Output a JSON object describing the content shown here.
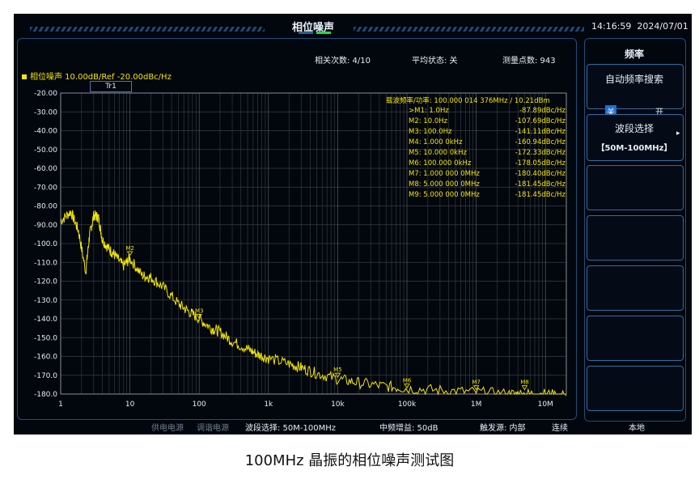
{
  "app": {
    "title": "相位噪声",
    "time": "14:16:59",
    "date": "2024/07/01"
  },
  "status": {
    "avg_count_label": "相关次数: 4/10",
    "avg_state_label": "平均状态: 关",
    "points_label": "测量点数: 943"
  },
  "trace": {
    "header": "相位噪声 10.00dB/Ref -20.00dBc/Hz",
    "tab": "Tr1",
    "color": "#f2e600"
  },
  "carrier_label": "载波频率/功率: 100.000 014 376MHz / 10.21dBm",
  "markers": [
    {
      "name": ">M1: 1.0Hz",
      "value": "-87.89dBc/Hz"
    },
    {
      "name": "M2: 10.0Hz",
      "value": "-107.69dBc/Hz"
    },
    {
      "name": "M3: 100.0Hz",
      "value": "-141.11dBc/Hz"
    },
    {
      "name": "M4: 1.000 0kHz",
      "value": "-160.94dBc/Hz"
    },
    {
      "name": "M5: 10.000 0kHz",
      "value": "-172.33dBc/Hz"
    },
    {
      "name": "M6: 100.000 0kHz",
      "value": "-178.05dBc/Hz"
    },
    {
      "name": "M7: 1.000 000 0MHz",
      "value": "-180.40dBc/Hz"
    },
    {
      "name": "M8: 5.000 000 0MHz",
      "value": "-181.45dBc/Hz"
    },
    {
      "name": "M9: 5.000 000 0MHz",
      "value": "-181.45dBc/Hz"
    }
  ],
  "chart_data": {
    "type": "line",
    "x_scale": "log",
    "xlim": [
      1,
      20000000
    ],
    "ylim": [
      -180,
      -20
    ],
    "y_ticks": [
      "-20.00",
      "-30.00",
      "-40.00",
      "-50.00",
      "-60.00",
      "-70.00",
      "-80.00",
      "-90.00",
      "-100.0",
      "-110.0",
      "-120.0",
      "-130.0",
      "-140.0",
      "-150.0",
      "-160.0",
      "-170.0",
      "-180.0"
    ],
    "x_ticks": [
      {
        "label": "1",
        "value": 1
      },
      {
        "label": "10",
        "value": 10
      },
      {
        "label": "100",
        "value": 100
      },
      {
        "label": "1k",
        "value": 1000
      },
      {
        "label": "10k",
        "value": 10000
      },
      {
        "label": "100k",
        "value": 100000
      },
      {
        "label": "1M",
        "value": 1000000
      },
      {
        "label": "10M",
        "value": 10000000
      }
    ],
    "grid": true,
    "series": [
      {
        "x": [
          1,
          1.4,
          1.8,
          2.3,
          2.6,
          3,
          3.5,
          4,
          5,
          6,
          8,
          10,
          15,
          20,
          30,
          50,
          70,
          100,
          150,
          200,
          300,
          500,
          700,
          1000,
          2000,
          3000,
          5000,
          10000,
          20000,
          50000,
          100000,
          300000,
          1000000,
          3000000,
          5000000,
          10000000,
          20000000
        ],
        "y": [
          -88,
          -83,
          -93,
          -115,
          -96,
          -85,
          -86,
          -98,
          -103,
          -106,
          -112,
          -108,
          -117,
          -118,
          -123,
          -132,
          -136,
          -140,
          -145,
          -147,
          -152,
          -156,
          -159,
          -161,
          -164,
          -166,
          -169,
          -172,
          -174,
          -176,
          -177,
          -178,
          -179,
          -180,
          -180,
          -180,
          -181
        ]
      }
    ],
    "marker_points": [
      {
        "label": "M2",
        "x": 10,
        "y": -107.69
      },
      {
        "label": "M3",
        "x": 100,
        "y": -141.11
      },
      {
        "label": "M5",
        "x": 10000,
        "y": -172.33
      },
      {
        "label": "M6",
        "x": 100000,
        "y": -178.05
      },
      {
        "label": "M7",
        "x": 1000000,
        "y": -180.4
      },
      {
        "label": "M8",
        "x": 5000000,
        "y": -181.45
      }
    ]
  },
  "sidebar": {
    "title": "频率",
    "auto_search": {
      "label": "自动频率搜索",
      "off": "关",
      "on": "开"
    },
    "band_select": {
      "label": "波段选择",
      "value": "【50M-100MHz】"
    }
  },
  "bottom": {
    "power": "供电电源",
    "tuning": "调谐电源",
    "band": "波段选择: 50M-100MHz",
    "if_gain": "中频增益: 50dB",
    "trigger": "触发源: 内部",
    "mode": "连续",
    "local": "本地"
  },
  "caption": "100MHz 晶振的相位噪声测试图"
}
